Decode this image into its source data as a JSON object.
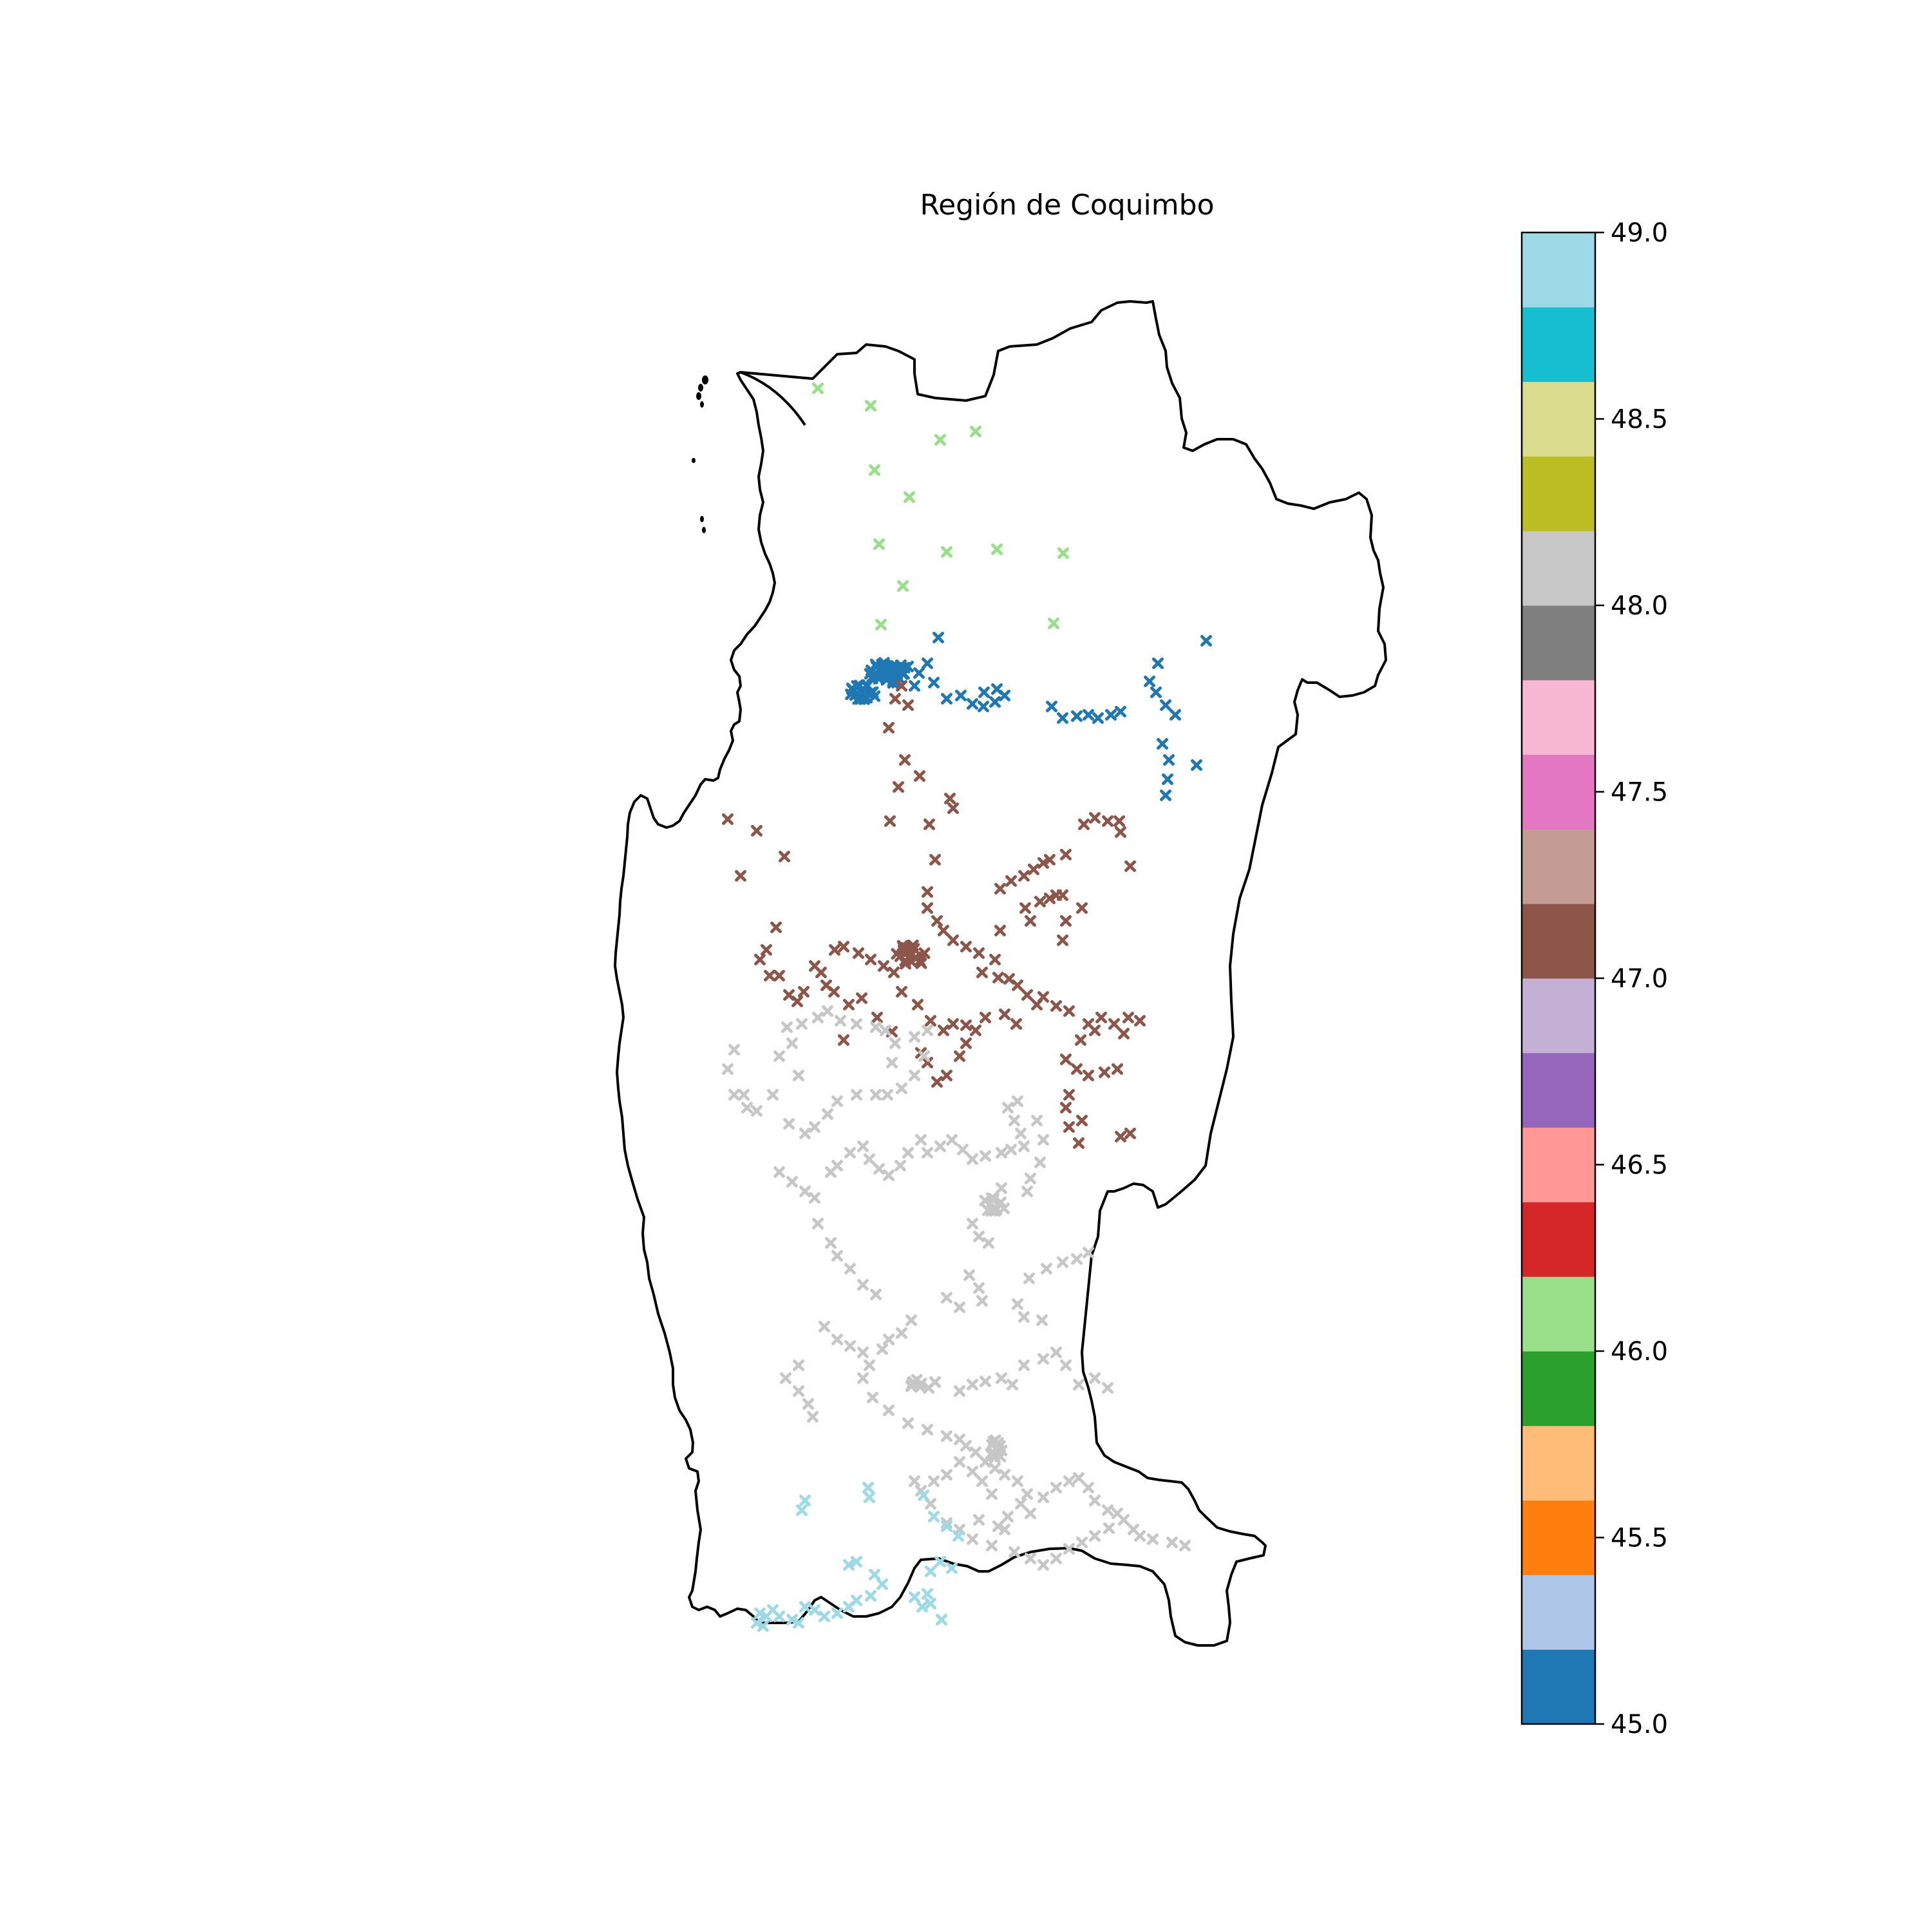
{
  "title": "Región de Coquimbo",
  "colorbar": {
    "min": 45.0,
    "max": 49.0,
    "colors": [
      "#1f77b4",
      "#aec7e8",
      "#ff7f0e",
      "#ffbb78",
      "#2ca02c",
      "#98df8a",
      "#d62728",
      "#ff9896",
      "#9467bd",
      "#c5b0d5",
      "#8c564b",
      "#c49c94",
      "#e377c2",
      "#f7b6d2",
      "#7f7f7f",
      "#c7c7c7",
      "#bcbd22",
      "#dbdb8d",
      "#17becf",
      "#9edae5"
    ],
    "ticks": [
      {
        "value": 45.0,
        "label": "45.0"
      },
      {
        "value": 45.5,
        "label": "45.5"
      },
      {
        "value": 46.0,
        "label": "46.0"
      },
      {
        "value": 46.5,
        "label": "46.5"
      },
      {
        "value": 47.0,
        "label": "47.0"
      },
      {
        "value": 47.5,
        "label": "47.5"
      },
      {
        "value": 48.0,
        "label": "48.0"
      },
      {
        "value": 48.5,
        "label": "48.5"
      },
      {
        "value": 49.0,
        "label": "49.0"
      }
    ]
  },
  "marker_groups": [
    {
      "value": 46.1,
      "color": "#98df8a"
    },
    {
      "value": 45.1,
      "color": "#1f77b4"
    },
    {
      "value": 47.1,
      "color": "#8c564b"
    },
    {
      "value": 48.1,
      "color": "#c7c7c7"
    },
    {
      "value": 48.9,
      "color": "#9edae5"
    }
  ]
}
